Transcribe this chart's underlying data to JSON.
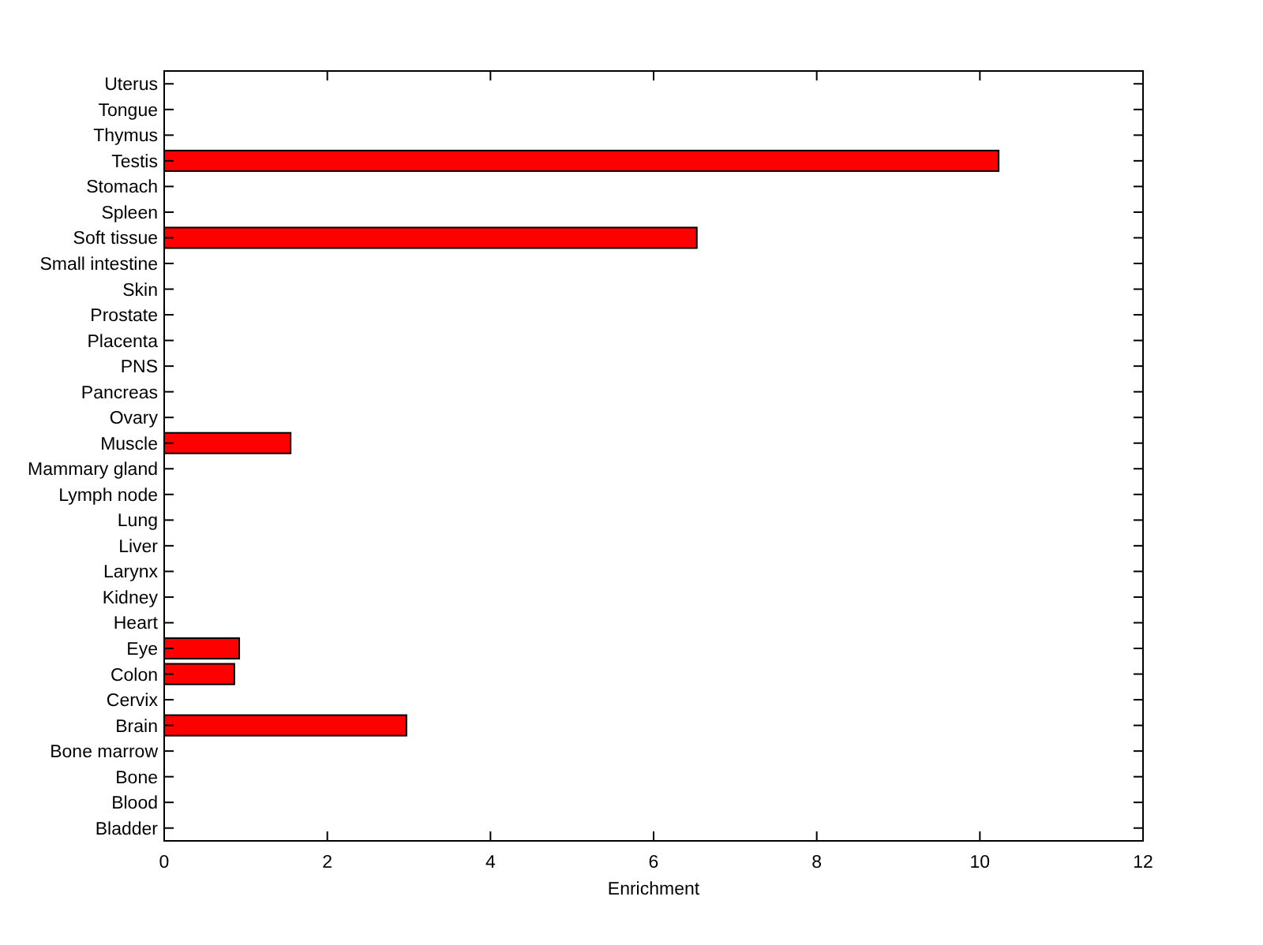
{
  "chart_data": {
    "type": "bar",
    "orientation": "horizontal",
    "xlabel": "Enrichment",
    "categories": [
      "Uterus",
      "Tongue",
      "Thymus",
      "Testis",
      "Stomach",
      "Spleen",
      "Soft tissue",
      "Small intestine",
      "Skin",
      "Prostate",
      "Placenta",
      "PNS",
      "Pancreas",
      "Ovary",
      "Muscle",
      "Mammary gland",
      "Lymph node",
      "Lung",
      "Liver",
      "Larynx",
      "Kidney",
      "Heart",
      "Eye",
      "Colon",
      "Cervix",
      "Brain",
      "Bone marrow",
      "Bone",
      "Blood",
      "Bladder"
    ],
    "values": [
      0,
      0,
      0,
      10.23,
      0,
      0,
      6.53,
      0,
      0,
      0,
      0,
      0,
      0,
      0,
      1.55,
      0,
      0,
      0,
      0,
      0,
      0,
      0,
      0.92,
      0.86,
      0,
      2.97,
      0,
      0,
      0,
      0
    ],
    "color": "#ff0000",
    "xlim": [
      0,
      12
    ],
    "xticks": [
      0,
      2,
      4,
      6,
      8,
      10,
      12
    ],
    "grid": false
  }
}
